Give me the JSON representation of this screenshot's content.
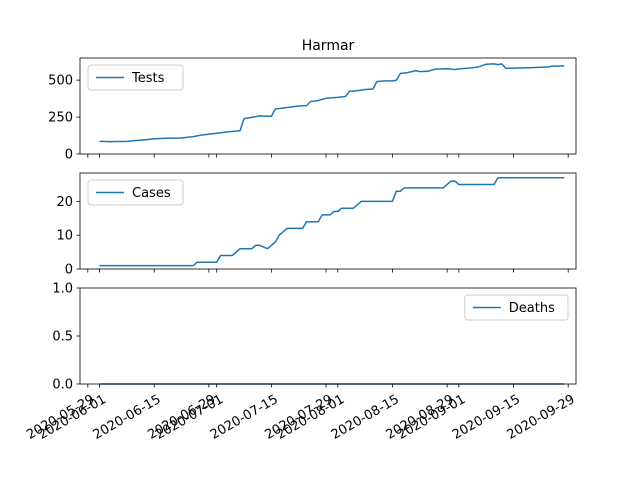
{
  "figure_title": "Harmar",
  "colors": {
    "line": "#1f77b4",
    "axis": "#000000",
    "background": "#ffffff"
  },
  "x_axis": {
    "type": "date",
    "range": [
      "2020-05-27",
      "2020-10-01"
    ],
    "tick_labels": [
      "2020-05-29",
      "2020-06-01",
      "2020-06-15",
      "2020-06-29",
      "2020-07-01",
      "2020-07-15",
      "2020-07-29",
      "2020-08-01",
      "2020-08-15",
      "2020-08-29",
      "2020-09-01",
      "2020-09-15",
      "2020-09-29"
    ],
    "label_rotation_deg": -30
  },
  "chart_data": [
    {
      "type": "line",
      "title": "Harmar",
      "ylim": [
        0,
        650
      ],
      "yticks": [
        0,
        250,
        500
      ],
      "show_x_tick_labels": false,
      "legend_position": "top-left",
      "grid": false,
      "series": [
        {
          "name": "Tests",
          "points": [
            [
              "2020-06-01",
              85
            ],
            [
              "2020-06-04",
              84
            ],
            [
              "2020-06-08",
              85
            ],
            [
              "2020-06-09",
              89
            ],
            [
              "2020-06-12",
              95
            ],
            [
              "2020-06-15",
              102
            ],
            [
              "2020-06-18",
              106
            ],
            [
              "2020-06-22",
              108
            ],
            [
              "2020-06-25",
              118
            ],
            [
              "2020-06-27",
              128
            ],
            [
              "2020-07-01",
              140
            ],
            [
              "2020-07-04",
              150
            ],
            [
              "2020-07-07",
              158
            ],
            [
              "2020-07-08",
              240
            ],
            [
              "2020-07-10",
              248
            ],
            [
              "2020-07-12",
              258
            ],
            [
              "2020-07-14",
              255
            ],
            [
              "2020-07-15",
              255
            ],
            [
              "2020-07-16",
              305
            ],
            [
              "2020-07-19",
              315
            ],
            [
              "2020-07-22",
              325
            ],
            [
              "2020-07-24",
              328
            ],
            [
              "2020-07-25",
              355
            ],
            [
              "2020-07-27",
              362
            ],
            [
              "2020-07-29",
              377
            ],
            [
              "2020-08-01",
              383
            ],
            [
              "2020-08-03",
              390
            ],
            [
              "2020-08-04",
              425
            ],
            [
              "2020-08-06",
              428
            ],
            [
              "2020-08-08",
              437
            ],
            [
              "2020-08-10",
              440
            ],
            [
              "2020-08-11",
              490
            ],
            [
              "2020-08-13",
              495
            ],
            [
              "2020-08-15",
              495
            ],
            [
              "2020-08-16",
              500
            ],
            [
              "2020-08-17",
              545
            ],
            [
              "2020-08-19",
              552
            ],
            [
              "2020-08-21",
              565
            ],
            [
              "2020-08-22",
              558
            ],
            [
              "2020-08-24",
              560
            ],
            [
              "2020-08-26",
              575
            ],
            [
              "2020-08-29",
              577
            ],
            [
              "2020-08-31",
              572
            ],
            [
              "2020-09-01",
              576
            ],
            [
              "2020-09-04",
              582
            ],
            [
              "2020-09-06",
              590
            ],
            [
              "2020-09-08",
              608
            ],
            [
              "2020-09-10",
              610
            ],
            [
              "2020-09-11",
              605
            ],
            [
              "2020-09-12",
              610
            ],
            [
              "2020-09-13",
              580
            ],
            [
              "2020-09-16",
              582
            ],
            [
              "2020-09-19",
              584
            ],
            [
              "2020-09-22",
              588
            ],
            [
              "2020-09-24",
              590
            ],
            [
              "2020-09-25",
              595
            ],
            [
              "2020-09-28",
              596
            ]
          ]
        }
      ]
    },
    {
      "type": "line",
      "ylim": [
        0,
        28.4
      ],
      "yticks": [
        0,
        10,
        20
      ],
      "show_x_tick_labels": false,
      "legend_position": "top-left",
      "grid": false,
      "series": [
        {
          "name": "Cases",
          "points": [
            [
              "2020-06-01",
              1
            ],
            [
              "2020-06-25",
              1
            ],
            [
              "2020-06-26",
              2
            ],
            [
              "2020-07-01",
              2
            ],
            [
              "2020-07-02",
              4
            ],
            [
              "2020-07-05",
              4
            ],
            [
              "2020-07-07",
              6
            ],
            [
              "2020-07-10",
              6
            ],
            [
              "2020-07-11",
              7
            ],
            [
              "2020-07-12",
              7
            ],
            [
              "2020-07-14",
              6
            ],
            [
              "2020-07-16",
              8
            ],
            [
              "2020-07-17",
              10
            ],
            [
              "2020-07-18",
              11
            ],
            [
              "2020-07-19",
              12
            ],
            [
              "2020-07-23",
              12
            ],
            [
              "2020-07-24",
              14
            ],
            [
              "2020-07-27",
              14
            ],
            [
              "2020-07-28",
              16
            ],
            [
              "2020-07-30",
              16
            ],
            [
              "2020-07-31",
              17
            ],
            [
              "2020-08-01",
              17
            ],
            [
              "2020-08-02",
              18
            ],
            [
              "2020-08-05",
              18
            ],
            [
              "2020-08-07",
              20
            ],
            [
              "2020-08-15",
              20
            ],
            [
              "2020-08-16",
              23
            ],
            [
              "2020-08-17",
              23
            ],
            [
              "2020-08-18",
              24
            ],
            [
              "2020-08-28",
              24
            ],
            [
              "2020-08-30",
              26
            ],
            [
              "2020-08-31",
              26
            ],
            [
              "2020-09-01",
              25
            ],
            [
              "2020-09-10",
              25
            ],
            [
              "2020-09-11",
              27
            ],
            [
              "2020-09-28",
              27
            ]
          ]
        }
      ]
    },
    {
      "type": "line",
      "ylim": [
        0,
        1
      ],
      "yticks": [
        0.0,
        0.5,
        1.0
      ],
      "show_x_tick_labels": true,
      "legend_position": "top-right",
      "grid": false,
      "series": [
        {
          "name": "Deaths",
          "points": [
            [
              "2020-06-01",
              0
            ],
            [
              "2020-09-28",
              0
            ]
          ]
        }
      ]
    }
  ]
}
